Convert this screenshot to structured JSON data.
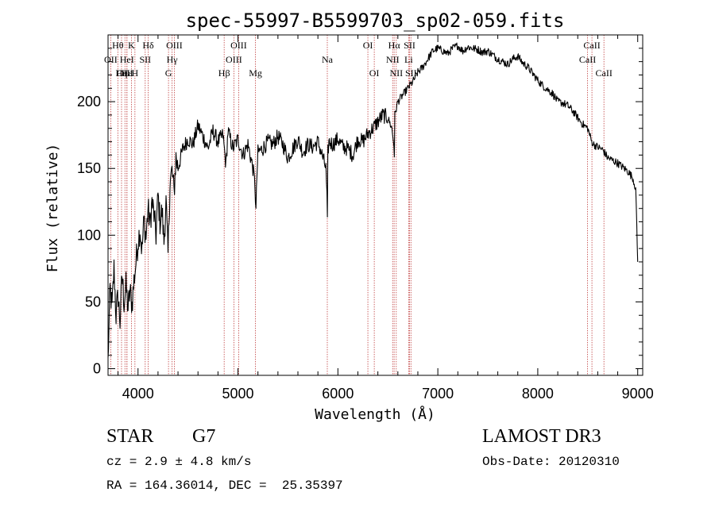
{
  "chart_data": {
    "type": "line",
    "title": "spec-55997-B5599703_sp02-059.fits",
    "xlabel": "Wavelength (Å)",
    "ylabel": "Flux (relative)",
    "xlim": [
      3700,
      9050
    ],
    "ylim": [
      -5,
      250
    ],
    "xticks": [
      4000,
      5000,
      6000,
      7000,
      8000,
      9000
    ],
    "yticks": [
      0,
      50,
      100,
      150,
      200
    ],
    "xminor_step": 200,
    "yminor_step": 10,
    "grid": false,
    "series": [
      {
        "name": "Flux",
        "color": "#000000",
        "x": [
          3700,
          3720,
          3740,
          3760,
          3780,
          3800,
          3820,
          3840,
          3860,
          3880,
          3900,
          3920,
          3940,
          3960,
          3980,
          4000,
          4020,
          4040,
          4060,
          4080,
          4100,
          4120,
          4140,
          4160,
          4180,
          4200,
          4220,
          4240,
          4260,
          4280,
          4300,
          4320,
          4340,
          4360,
          4380,
          4400,
          4450,
          4500,
          4550,
          4600,
          4650,
          4700,
          4750,
          4800,
          4850,
          4880,
          4900,
          4950,
          5000,
          5050,
          5100,
          5150,
          5170,
          5180,
          5190,
          5200,
          5250,
          5300,
          5350,
          5400,
          5450,
          5500,
          5550,
          5600,
          5650,
          5700,
          5750,
          5800,
          5850,
          5880,
          5890,
          5895,
          5900,
          5910,
          5950,
          6000,
          6050,
          6100,
          6150,
          6200,
          6250,
          6300,
          6350,
          6400,
          6450,
          6500,
          6540,
          6560,
          6565,
          6570,
          6600,
          6650,
          6700,
          6750,
          6800,
          6850,
          6900,
          6950,
          7000,
          7050,
          7100,
          7150,
          7200,
          7250,
          7300,
          7350,
          7400,
          7450,
          7500,
          7550,
          7600,
          7650,
          7700,
          7750,
          7800,
          7850,
          7900,
          7950,
          8000,
          8050,
          8100,
          8150,
          8200,
          8250,
          8300,
          8350,
          8400,
          8450,
          8500,
          8540,
          8560,
          8600,
          8650,
          8700,
          8750,
          8800,
          8850,
          8900,
          8950,
          8980,
          9000
        ],
        "values": [
          5,
          60,
          45,
          75,
          40,
          55,
          35,
          70,
          50,
          62,
          45,
          58,
          48,
          66,
          80,
          95,
          105,
          88,
          112,
          98,
          120,
          108,
          125,
          115,
          100,
          130,
          110,
          118,
          95,
          125,
          85,
          140,
          148,
          132,
          158,
          150,
          165,
          172,
          168,
          182,
          174,
          165,
          178,
          170,
          175,
          152,
          178,
          165,
          172,
          160,
          168,
          150,
          138,
          118,
          145,
          162,
          165,
          170,
          168,
          174,
          168,
          158,
          165,
          172,
          162,
          168,
          166,
          170,
          158,
          150,
          128,
          108,
          162,
          170,
          168,
          172,
          166,
          165,
          160,
          172,
          170,
          176,
          180,
          185,
          190,
          188,
          180,
          168,
          160,
          190,
          200,
          205,
          210,
          215,
          222,
          226,
          232,
          238,
          240,
          238,
          236,
          240,
          242,
          238,
          241,
          240,
          239,
          237,
          238,
          235,
          232,
          230,
          228,
          232,
          234,
          229,
          226,
          221,
          216,
          212,
          209,
          206,
          200,
          199,
          197,
          193,
          188,
          183,
          180,
          170,
          168,
          166,
          164,
          158,
          156,
          154,
          151,
          148,
          143,
          135,
          80
        ]
      }
    ],
    "spectral_lines": [
      {
        "label": "Hθ",
        "wavelength": 3798,
        "row": 1
      },
      {
        "label": "OII",
        "wavelength": 3727,
        "row": 2
      },
      {
        "label": "OIII",
        "wavelength": 3869,
        "row": 3
      },
      {
        "label": "Hε",
        "wavelength": 3889,
        "row": 3
      },
      {
        "label": "K",
        "wavelength": 3934,
        "row": 1
      },
      {
        "label": "HeI",
        "wavelength": 3889,
        "row": 2
      },
      {
        "label": "Hη",
        "wavelength": 3835,
        "row": 3
      },
      {
        "label": "H",
        "wavelength": 3969,
        "row": 3
      },
      {
        "label": "SII",
        "wavelength": 4072,
        "row": 2
      },
      {
        "label": "Hδ",
        "wavelength": 4102,
        "row": 1
      },
      {
        "label": "OIII",
        "wavelength": 4363,
        "row": 1
      },
      {
        "label": "Hγ",
        "wavelength": 4341,
        "row": 2
      },
      {
        "label": "G",
        "wavelength": 4305,
        "row": 3
      },
      {
        "label": "Hβ",
        "wavelength": 4862,
        "row": 3
      },
      {
        "label": "OIII",
        "wavelength": 5007,
        "row": 1
      },
      {
        "label": "OIII",
        "wavelength": 4959,
        "row": 2
      },
      {
        "label": "Mg",
        "wavelength": 5175,
        "row": 3
      },
      {
        "label": "Na",
        "wavelength": 5894,
        "row": 2
      },
      {
        "label": "OI",
        "wavelength": 6300,
        "row": 1
      },
      {
        "label": "OI",
        "wavelength": 6364,
        "row": 3
      },
      {
        "label": "Hα",
        "wavelength": 6563,
        "row": 1
      },
      {
        "label": "SII",
        "wavelength": 6717,
        "row": 1
      },
      {
        "label": "NII",
        "wavelength": 6548,
        "row": 2
      },
      {
        "label": "Li",
        "wavelength": 6708,
        "row": 2
      },
      {
        "label": "NII",
        "wavelength": 6584,
        "row": 3
      },
      {
        "label": "SII",
        "wavelength": 6731,
        "row": 3
      },
      {
        "label": "CaII",
        "wavelength": 8542,
        "row": 1
      },
      {
        "label": "CaII",
        "wavelength": 8498,
        "row": 2
      },
      {
        "label": "CaII",
        "wavelength": 8662,
        "row": 3
      }
    ]
  },
  "info": {
    "object_class": "STAR",
    "subclass": "G7",
    "redshift": "cz = 2.9 ± 4.8 km/s",
    "coords": "RA = 164.36014, DEC =  25.35397",
    "survey": "LAMOST DR3",
    "obs_date": "Obs-Date: 20120310"
  },
  "colors": {
    "line_marker": "#c04040",
    "spectrum": "#000000",
    "axes": "#000000"
  }
}
